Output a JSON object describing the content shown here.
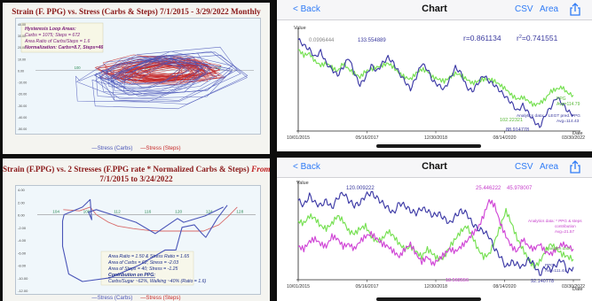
{
  "top_left": {
    "title": "Strain (F. PPG) vs. Stress (Carbs & Steps)  7/1/2015 - 3/29/2022 Monthly",
    "box": {
      "heading": "Hysteresis Loop Areas:",
      "carbs_steps": "Carbs = 1075;  Steps = 672",
      "area_ratio": "Area Ratio of Carbs/Steps = 1.6",
      "normalization": "Normalization: Carbs=8.7, Steps=46"
    },
    "legend": {
      "carbs": "Stress (Carbs)",
      "steps": "Stress (Steps)"
    }
  },
  "bottom_left": {
    "title_part1": "Strain (F.PPG) vs. 2 Stresses (F.PPG rate * Normalized Carbs & Steps) ",
    "title_from": "From",
    "title_line2": "7/1/2015 to 3/24/2022",
    "notes": {
      "area_ratio": "Area Ratio = 1.50 &  Stress Ratio = 1.65",
      "area_carbs": "Area of Carbs = 62;  Stress = -2.03",
      "area_steps": "Area of Steps = 40;  Stress = -1.25",
      "contribution_label": "Contribution on PPG:",
      "contribution": "Carbs/Sugar ~62%, Walking ~40% (Ratio = 1.6)"
    },
    "legend": {
      "carbs": "Stress (Carbs)",
      "steps": "Stress (Steps)"
    }
  },
  "top_right": {
    "nav": {
      "back": "< Back",
      "title": "Chart",
      "csv": "CSV",
      "area": "Area"
    },
    "axis_value": "Value",
    "axis_date": "Date",
    "r_label": "r=0.861134",
    "r2_label": "r",
    "r2_sup": "2",
    "r2_value": "=0.741551",
    "labels": {
      "start": "0.0996444",
      "peak": "133.554889",
      "low": "102.22321",
      "min": "88.914778",
      "right_a": "PPG",
      "right_b": "Avg=114.79",
      "right_c": "Analytics data: * LEGT pred. PPG",
      "right_d": "Avg=114.43"
    }
  },
  "bottom_right": {
    "nav": {
      "back": "< Back",
      "title": "Chart",
      "csv": "CSV",
      "area": "Area"
    },
    "axis_value": "Value",
    "axis_date": "Date",
    "labels": {
      "left_peak": "120.009222",
      "mid_peak": "25.446222",
      "mid_peak2": "45.978007",
      "low_a": "18.568556",
      "right_a": "Analytics data: * PPG & steps",
      "right_b": "contribution",
      "right_c": "Avg=21.57",
      "right_d": "Analytics data:",
      "right_e": "PPG",
      "right_f": "Avg=111.44",
      "right_g": "92.140778"
    }
  },
  "colors": {
    "carbs": "#4a55b8",
    "steps": "#c62828",
    "ppg_blue": "#3d3aa6",
    "ppg_green": "#76e052",
    "magenta": "#d046d6",
    "ios_blue": "#2f7bf6",
    "title_red": "#8b1a1a"
  },
  "chart_data": [
    {
      "type": "scatter",
      "id": "top-left-hysteresis",
      "title": "Strain (F. PPG) vs. Stress (Carbs & Steps)  7/1/2015 - 3/29/2022 Monthly",
      "x_ticks": [
        "100",
        "120",
        "140"
      ],
      "y_ticks": [
        "40.00",
        "30.00",
        "20.00",
        "10.00",
        "0.00",
        "-10.00",
        "-20.00",
        "-30.00",
        "-40.00",
        "-50.00"
      ],
      "xlim": [
        88,
        150
      ],
      "ylim": [
        -50,
        40
      ],
      "series": [
        {
          "name": "Stress (Carbs)",
          "style": "hysteresis loops",
          "shape": [
            [
              107,
              -10
            ],
            [
              123,
              14
            ],
            [
              141,
              2
            ],
            [
              134,
              -17
            ],
            [
              113,
              -22
            ],
            [
              104,
              -8
            ],
            [
              114,
              10
            ],
            [
              137,
              17
            ],
            [
              144,
              -3
            ],
            [
              126,
              -27
            ],
            [
              106,
              -25
            ],
            [
              104,
              -4
            ]
          ]
        },
        {
          "name": "Stress (Steps)",
          "style": "hysteresis loops",
          "shape": [
            [
              112,
              -2
            ],
            [
              128,
              8
            ],
            [
              136,
              3
            ],
            [
              130,
              -7
            ],
            [
              116,
              -8
            ],
            [
              110,
              1
            ],
            [
              120,
              9
            ],
            [
              134,
              6
            ],
            [
              138,
              -4
            ],
            [
              124,
              -9
            ],
            [
              112,
              -5
            ]
          ]
        }
      ]
    },
    {
      "type": "line",
      "id": "bottom-left-hysteresis",
      "title": "Strain (F.PPG) vs. 2 Stresses (F.PPG rate * Normalized Carbs & Steps) From 7/1/2015 to 3/24/2022",
      "x_ticks": [
        "104",
        "108",
        "112",
        "116",
        "120",
        "124",
        "128"
      ],
      "y_ticks": [
        "4.00",
        "2.00",
        "0.00",
        "-2.00",
        "-4.00",
        "-6.00",
        "-8.00",
        "-10.00",
        "-12.00"
      ],
      "xlim": [
        101.5,
        130
      ],
      "ylim": [
        -12,
        4
      ],
      "series": [
        {
          "name": "Stress (Carbs)",
          "points": [
            [
              126.3,
              1.5
            ],
            [
              125,
              -0.6
            ],
            [
              123.5,
              -3.6
            ],
            [
              123,
              -3
            ],
            [
              122,
              -1.6
            ],
            [
              120.4,
              -2
            ],
            [
              119.6,
              -5.6
            ],
            [
              118.2,
              -5.6
            ],
            [
              114.8,
              -8
            ],
            [
              111,
              -10
            ],
            [
              107.4,
              -10.6
            ],
            [
              105.6,
              -9.4
            ],
            [
              104.8,
              -5
            ],
            [
              104.8,
              -1
            ],
            [
              105,
              0
            ],
            [
              107.4,
              1.2
            ],
            [
              108.4,
              2.4
            ],
            [
              108.6,
              -0.8
            ],
            [
              108.2,
              0.4
            ],
            [
              109.2,
              0.8
            ],
            [
              114.4,
              -1.2
            ],
            [
              116.9,
              -3
            ],
            [
              119.8,
              -0.6
            ],
            [
              120.6,
              -1.2
            ],
            [
              123.4,
              -0.2
            ],
            [
              125.8,
              1.2
            ]
          ]
        },
        {
          "name": "Stress (Steps)",
          "points": [
            [
              104.9,
              0.8
            ],
            [
              107,
              0.6
            ],
            [
              108.4,
              1.2
            ],
            [
              109.2,
              0
            ],
            [
              110.8,
              -1.2
            ],
            [
              112,
              -1.8
            ],
            [
              114,
              -2.2
            ],
            [
              116,
              -2.5
            ],
            [
              117.5,
              -2.6
            ],
            [
              119.5,
              -2.6
            ],
            [
              121.5,
              -2.6
            ],
            [
              123.2,
              -2.6
            ],
            [
              125.2,
              -1.6
            ],
            [
              126.4,
              -0.3
            ],
            [
              127.6,
              1.2
            ]
          ]
        }
      ]
    },
    {
      "type": "line",
      "id": "top-right-ppg",
      "x_ticks": [
        "10/01/2015",
        "05/16/2017",
        "12/30/2018",
        "08/14/2020",
        "03/30/2022"
      ],
      "series": [
        {
          "name": "PPG",
          "values": [
            133,
            130,
            128,
            124,
            127,
            121,
            118,
            115,
            119,
            124,
            116,
            110,
            114,
            120,
            117,
            121,
            124,
            121,
            116,
            112,
            108,
            114,
            121,
            118,
            112,
            110,
            108,
            113,
            119,
            116,
            109,
            107,
            111,
            115,
            112,
            110,
            107,
            104,
            101,
            97,
            100,
            96,
            92,
            89,
            95,
            99,
            104,
            101,
            97,
            95
          ]
        },
        {
          "name": "Analytics data: * LEGT pred. PPG",
          "values": [
            128,
            125,
            126,
            122,
            120,
            121,
            119,
            117,
            121,
            118,
            116,
            114,
            117,
            118,
            119,
            120,
            121,
            119,
            116,
            114,
            113,
            116,
            118,
            117,
            114,
            113,
            112,
            114,
            116,
            115,
            113,
            111,
            112,
            113,
            113,
            112,
            110,
            108,
            105,
            103,
            104,
            102,
            100,
            101,
            103,
            107,
            108,
            109,
            106,
            105
          ]
        }
      ]
    },
    {
      "type": "line",
      "id": "bottom-right-ppg",
      "x_ticks": [
        "10/01/2015",
        "05/16/2017",
        "12/30/2018",
        "08/14/2020",
        "03/30/2022"
      ],
      "series": [
        {
          "name": "PPG",
          "values": [
            118,
            116,
            120,
            117,
            116,
            118,
            115,
            119,
            121,
            118,
            116,
            117,
            120,
            121,
            119,
            117,
            115,
            113,
            117,
            116,
            114,
            113,
            115,
            114,
            112,
            113,
            111,
            109,
            112,
            114,
            113,
            109,
            107,
            106,
            104,
            99,
            96,
            92,
            94,
            93,
            92,
            95,
            93,
            89,
            92,
            91,
            93,
            95,
            90,
            92
          ]
        },
        {
          "name": "Analytics data: * PPG & steps contribution",
          "values": [
            100,
            99,
            102,
            103,
            101,
            100,
            104,
            103,
            100,
            101,
            99,
            102,
            104,
            105,
            103,
            101,
            100,
            98,
            96,
            99,
            101,
            97,
            94,
            96,
            93,
            95,
            97,
            99,
            98,
            100,
            102,
            105,
            107,
            112,
            118,
            116,
            109,
            104,
            100,
            98,
            103,
            100,
            99,
            101,
            98,
            97,
            99,
            101,
            100,
            99
          ]
        },
        {
          "name": "Analytics data: * PPG",
          "values": [
            110,
            109,
            112,
            111,
            108,
            107,
            109,
            112,
            110,
            106,
            105,
            107,
            108,
            104,
            102,
            103,
            106,
            104,
            101,
            99,
            100,
            98,
            96,
            99,
            97,
            95,
            96,
            100,
            103,
            106,
            108,
            104,
            99,
            96,
            97,
            102,
            108,
            114,
            109,
            103,
            99,
            95,
            92,
            94,
            98,
            101,
            99,
            97,
            96,
            95
          ]
        }
      ]
    }
  ]
}
